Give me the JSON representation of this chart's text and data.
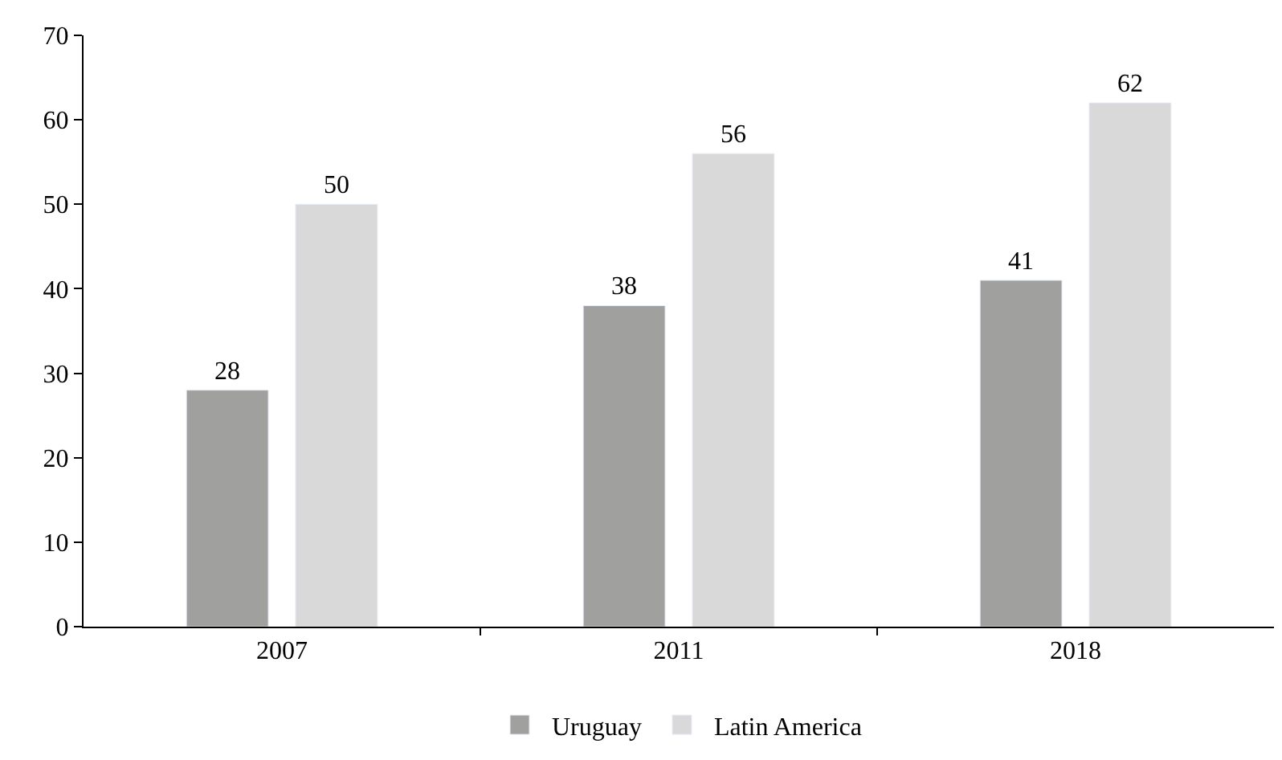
{
  "chart_data": {
    "type": "bar",
    "categories": [
      "2007",
      "2011",
      "2018"
    ],
    "series": [
      {
        "name": "Uruguay",
        "color": "#a0a09e",
        "values": [
          28,
          38,
          41
        ]
      },
      {
        "name": "Latin America",
        "color": "#d9d9d9",
        "values": [
          50,
          56,
          62
        ]
      }
    ],
    "ylim": [
      0,
      70
    ],
    "yticks": [
      0,
      10,
      20,
      30,
      40,
      50,
      60,
      70
    ],
    "data_labels": true,
    "legend": "bottom",
    "grid": false
  }
}
